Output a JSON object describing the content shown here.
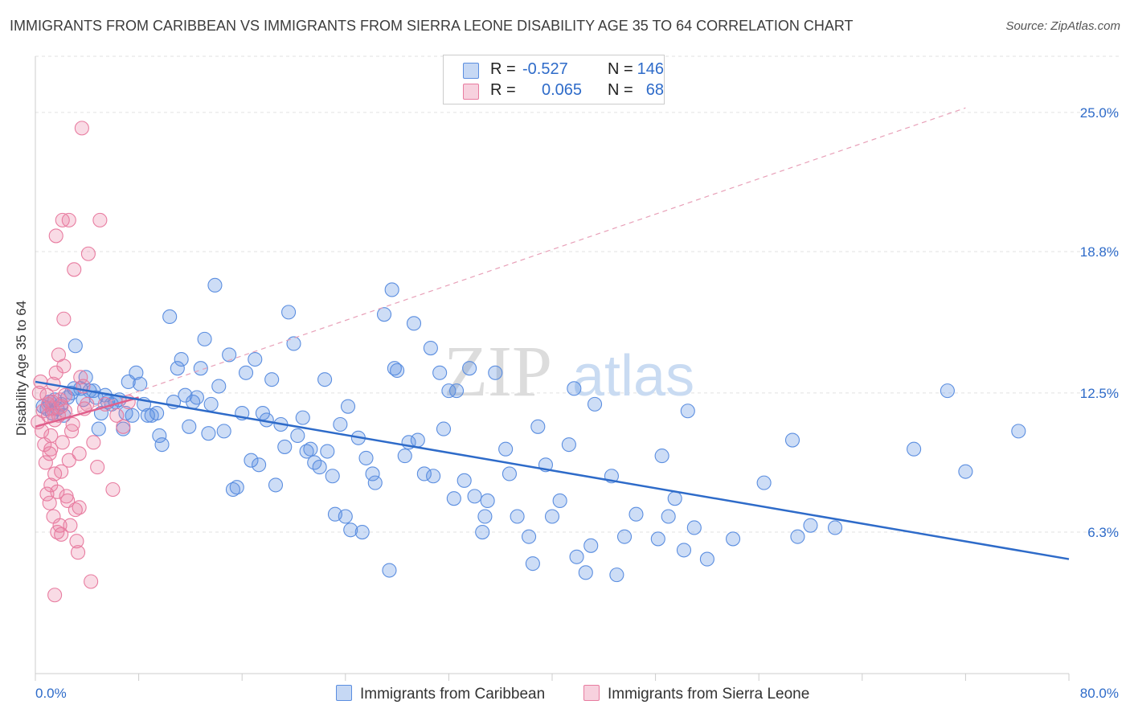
{
  "title": "IMMIGRANTS FROM CARIBBEAN VS IMMIGRANTS FROM SIERRA LEONE DISABILITY AGE 35 TO 64 CORRELATION CHART",
  "source": "Source: ZipAtlas.com",
  "watermark": {
    "zip": "ZIP",
    "atlas": "atlas"
  },
  "legend_top": {
    "rows": [
      {
        "r_label": "R =",
        "r_value": "-0.527",
        "n_label": "N =",
        "n_value": "146",
        "color": "#5b8ee0"
      },
      {
        "r_label": "R =",
        "r_value": "0.065",
        "n_label": "N =",
        "n_value": "68",
        "color": "#e87ca0"
      }
    ]
  },
  "legend_bottom": [
    {
      "label": "Immigrants from Caribbean",
      "color": "#5b8ee0"
    },
    {
      "label": "Immigrants from Sierra Leone",
      "color": "#e87ca0"
    }
  ],
  "chart_data": {
    "type": "scatter",
    "title": "IMMIGRANTS FROM CARIBBEAN VS IMMIGRANTS FROM SIERRA LEONE DISABILITY AGE 35 TO 64 CORRELATION CHART",
    "xlabel": "",
    "ylabel": "Disability Age 35 to 64",
    "xlim": [
      0,
      80
    ],
    "ylim": [
      0,
      27.5
    ],
    "x_tick_labels": [
      "0.0%",
      "80.0%"
    ],
    "y_ticks": [
      6.3,
      12.5,
      18.8,
      25.0
    ],
    "y_tick_labels": [
      "6.3%",
      "12.5%",
      "18.8%",
      "25.0%"
    ],
    "grid": true,
    "legend_position": "top-center",
    "series": [
      {
        "name": "Immigrants from Caribbean",
        "color": "#5b8ee0",
        "trend": {
          "x": [
            0,
            80
          ],
          "y": [
            13.0,
            5.1
          ]
        },
        "points": [
          [
            0.6,
            11.9
          ],
          [
            0.9,
            11.8
          ],
          [
            1.1,
            12.1
          ],
          [
            1.3,
            11.6
          ],
          [
            1.5,
            12.2
          ],
          [
            1.7,
            11.8
          ],
          [
            2.0,
            12.0
          ],
          [
            2.2,
            11.5
          ],
          [
            2.5,
            12.3
          ],
          [
            2.8,
            12.5
          ],
          [
            3.0,
            12.7
          ],
          [
            3.1,
            14.6
          ],
          [
            3.5,
            12.7
          ],
          [
            3.7,
            12.2
          ],
          [
            3.9,
            13.2
          ],
          [
            4.2,
            12.6
          ],
          [
            4.5,
            12.6
          ],
          [
            4.7,
            12.3
          ],
          [
            4.9,
            10.9
          ],
          [
            5.1,
            11.6
          ],
          [
            5.4,
            12.4
          ],
          [
            5.6,
            12.1
          ],
          [
            5.9,
            12.0
          ],
          [
            6.2,
            12.1
          ],
          [
            6.5,
            12.2
          ],
          [
            6.8,
            10.9
          ],
          [
            7.0,
            11.6
          ],
          [
            7.2,
            13.0
          ],
          [
            7.5,
            11.5
          ],
          [
            7.8,
            13.4
          ],
          [
            8.1,
            12.9
          ],
          [
            8.4,
            12.0
          ],
          [
            8.7,
            11.5
          ],
          [
            9.0,
            11.5
          ],
          [
            9.4,
            11.6
          ],
          [
            9.6,
            10.6
          ],
          [
            9.8,
            10.2
          ],
          [
            10.4,
            15.9
          ],
          [
            10.7,
            12.1
          ],
          [
            11.0,
            13.6
          ],
          [
            11.3,
            14.0
          ],
          [
            11.6,
            12.4
          ],
          [
            11.9,
            11.0
          ],
          [
            12.2,
            12.1
          ],
          [
            12.5,
            12.3
          ],
          [
            12.8,
            13.6
          ],
          [
            13.1,
            14.9
          ],
          [
            13.4,
            10.7
          ],
          [
            13.6,
            12.0
          ],
          [
            13.9,
            17.3
          ],
          [
            14.2,
            12.8
          ],
          [
            14.6,
            10.8
          ],
          [
            15.0,
            14.2
          ],
          [
            15.3,
            8.2
          ],
          [
            15.6,
            8.3
          ],
          [
            16.0,
            11.6
          ],
          [
            16.3,
            13.4
          ],
          [
            16.7,
            9.5
          ],
          [
            17.0,
            14.0
          ],
          [
            17.3,
            9.3
          ],
          [
            17.6,
            11.6
          ],
          [
            17.9,
            11.3
          ],
          [
            18.3,
            13.1
          ],
          [
            18.6,
            8.4
          ],
          [
            19.0,
            11.1
          ],
          [
            19.3,
            10.1
          ],
          [
            19.6,
            16.1
          ],
          [
            20.0,
            14.7
          ],
          [
            20.3,
            10.6
          ],
          [
            20.7,
            11.4
          ],
          [
            21.0,
            9.9
          ],
          [
            21.3,
            10.0
          ],
          [
            21.6,
            9.4
          ],
          [
            22.0,
            9.2
          ],
          [
            22.4,
            13.1
          ],
          [
            22.6,
            9.9
          ],
          [
            23.0,
            8.8
          ],
          [
            23.2,
            7.1
          ],
          [
            23.6,
            11.1
          ],
          [
            24.0,
            7.0
          ],
          [
            24.2,
            11.9
          ],
          [
            24.4,
            6.4
          ],
          [
            25.0,
            10.5
          ],
          [
            25.3,
            6.3
          ],
          [
            25.6,
            9.6
          ],
          [
            26.1,
            8.9
          ],
          [
            26.3,
            8.5
          ],
          [
            27.0,
            16.0
          ],
          [
            27.4,
            4.6
          ],
          [
            27.6,
            17.1
          ],
          [
            27.8,
            13.6
          ],
          [
            28.0,
            13.5
          ],
          [
            28.6,
            9.7
          ],
          [
            28.9,
            10.3
          ],
          [
            29.3,
            15.6
          ],
          [
            29.6,
            10.4
          ],
          [
            30.1,
            8.9
          ],
          [
            30.6,
            14.5
          ],
          [
            30.8,
            8.8
          ],
          [
            31.3,
            13.4
          ],
          [
            31.6,
            10.9
          ],
          [
            32.0,
            12.6
          ],
          [
            32.4,
            7.8
          ],
          [
            32.6,
            12.6
          ],
          [
            33.2,
            8.6
          ],
          [
            33.6,
            13.6
          ],
          [
            34.0,
            7.9
          ],
          [
            34.6,
            6.3
          ],
          [
            34.8,
            7.0
          ],
          [
            35.0,
            7.7
          ],
          [
            35.6,
            13.4
          ],
          [
            36.4,
            10.0
          ],
          [
            36.7,
            8.9
          ],
          [
            37.3,
            7.0
          ],
          [
            38.2,
            6.1
          ],
          [
            38.5,
            4.9
          ],
          [
            38.9,
            11.0
          ],
          [
            39.5,
            9.3
          ],
          [
            40.0,
            7.0
          ],
          [
            40.6,
            7.7
          ],
          [
            41.3,
            10.2
          ],
          [
            41.7,
            12.7
          ],
          [
            41.9,
            5.2
          ],
          [
            42.6,
            4.5
          ],
          [
            43.0,
            5.7
          ],
          [
            43.3,
            12.0
          ],
          [
            44.6,
            8.8
          ],
          [
            45.0,
            4.4
          ],
          [
            45.6,
            6.1
          ],
          [
            46.5,
            7.1
          ],
          [
            48.2,
            6.0
          ],
          [
            48.5,
            9.7
          ],
          [
            49.0,
            7.0
          ],
          [
            49.5,
            7.8
          ],
          [
            50.2,
            5.5
          ],
          [
            50.5,
            11.7
          ],
          [
            51.0,
            6.5
          ],
          [
            52.0,
            5.1
          ],
          [
            54.0,
            6.0
          ],
          [
            56.4,
            8.5
          ],
          [
            58.6,
            10.4
          ],
          [
            59.0,
            6.1
          ],
          [
            60.0,
            6.6
          ],
          [
            61.9,
            6.5
          ],
          [
            68.0,
            10.0
          ],
          [
            70.6,
            12.6
          ],
          [
            72.0,
            9.0
          ],
          [
            76.1,
            10.8
          ]
        ]
      },
      {
        "name": "Immigrants from Sierra Leone",
        "color": "#e87ca0",
        "trend": {
          "x": [
            0,
            8
          ],
          "y": [
            11.0,
            12.3
          ]
        },
        "trend_extended": {
          "x": [
            0,
            72
          ],
          "y": [
            11.0,
            25.2
          ]
        },
        "points": [
          [
            0.2,
            11.2
          ],
          [
            0.3,
            12.5
          ],
          [
            0.4,
            13.0
          ],
          [
            0.5,
            10.8
          ],
          [
            0.6,
            11.7
          ],
          [
            0.7,
            10.2
          ],
          [
            0.8,
            9.4
          ],
          [
            0.9,
            8.0
          ],
          [
            1.0,
            11.5
          ],
          [
            1.0,
            12.0
          ],
          [
            1.1,
            7.6
          ],
          [
            1.1,
            9.8
          ],
          [
            1.2,
            8.4
          ],
          [
            1.2,
            10.6
          ],
          [
            1.3,
            11.8
          ],
          [
            1.3,
            12.1
          ],
          [
            1.4,
            12.9
          ],
          [
            1.4,
            7.0
          ],
          [
            1.5,
            8.9
          ],
          [
            1.5,
            11.3
          ],
          [
            1.6,
            13.4
          ],
          [
            1.6,
            19.5
          ],
          [
            1.7,
            6.3
          ],
          [
            1.7,
            8.1
          ],
          [
            1.8,
            11.5
          ],
          [
            1.8,
            14.2
          ],
          [
            1.9,
            12.2
          ],
          [
            2.0,
            6.2
          ],
          [
            2.0,
            9.0
          ],
          [
            2.1,
            10.3
          ],
          [
            2.1,
            20.2
          ],
          [
            2.2,
            13.7
          ],
          [
            2.2,
            15.8
          ],
          [
            2.3,
            11.7
          ],
          [
            2.3,
            12.4
          ],
          [
            2.4,
            7.9
          ],
          [
            2.5,
            7.7
          ],
          [
            2.6,
            20.2
          ],
          [
            2.6,
            9.5
          ],
          [
            2.8,
            10.8
          ],
          [
            3.0,
            18.0
          ],
          [
            3.1,
            7.3
          ],
          [
            3.2,
            5.9
          ],
          [
            3.3,
            5.4
          ],
          [
            3.4,
            9.8
          ],
          [
            3.5,
            13.2
          ],
          [
            3.6,
            24.3
          ],
          [
            3.8,
            11.8
          ],
          [
            4.0,
            12.0
          ],
          [
            4.1,
            18.7
          ],
          [
            4.3,
            4.1
          ],
          [
            4.5,
            10.3
          ],
          [
            4.8,
            9.2
          ],
          [
            5.0,
            20.2
          ],
          [
            5.4,
            12.0
          ],
          [
            6.0,
            8.2
          ],
          [
            6.3,
            11.5
          ],
          [
            6.8,
            11.0
          ],
          [
            7.2,
            12.1
          ],
          [
            1.9,
            6.6
          ],
          [
            3.4,
            7.4
          ],
          [
            2.9,
            11.1
          ],
          [
            3.7,
            12.8
          ],
          [
            1.2,
            10.0
          ],
          [
            0.9,
            12.4
          ],
          [
            1.5,
            3.5
          ],
          [
            2.7,
            6.6
          ],
          [
            2.0,
            11.9
          ]
        ]
      }
    ]
  }
}
